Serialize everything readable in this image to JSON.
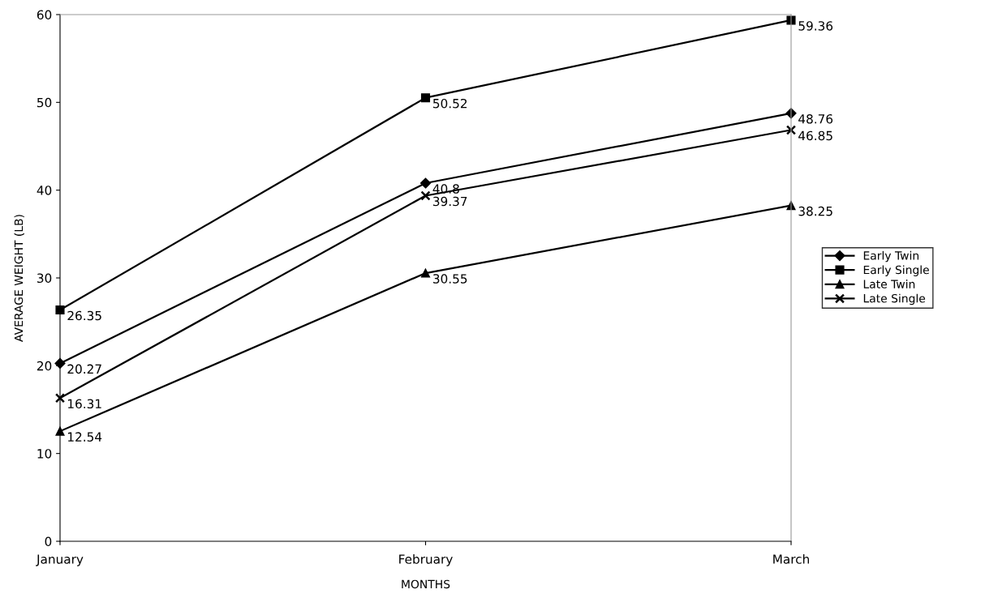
{
  "chart_data": {
    "type": "line",
    "xlabel": "MONTHS",
    "ylabel": "AVERAGE WEIGHT (LB)",
    "categories": [
      "January",
      "February",
      "March"
    ],
    "series": [
      {
        "name": "Early Twin",
        "color": "#000000",
        "marker": "diamond",
        "values": [
          20.27,
          40.8,
          48.76
        ]
      },
      {
        "name": "Early Single",
        "color": "#000000",
        "marker": "square",
        "values": [
          26.35,
          50.52,
          59.36
        ]
      },
      {
        "name": "Late Twin",
        "color": "#000000",
        "marker": "triangle",
        "values": [
          12.54,
          30.55,
          38.25
        ]
      },
      {
        "name": "Late Single",
        "color": "#000000",
        "marker": "cross",
        "values": [
          16.31,
          39.37,
          46.85
        ]
      }
    ],
    "ylim": [
      0,
      60
    ],
    "yticks": [
      0,
      10,
      20,
      30,
      40,
      50,
      60
    ],
    "grid": false,
    "legend": "right",
    "data_labels": true,
    "line_style": "solid"
  }
}
